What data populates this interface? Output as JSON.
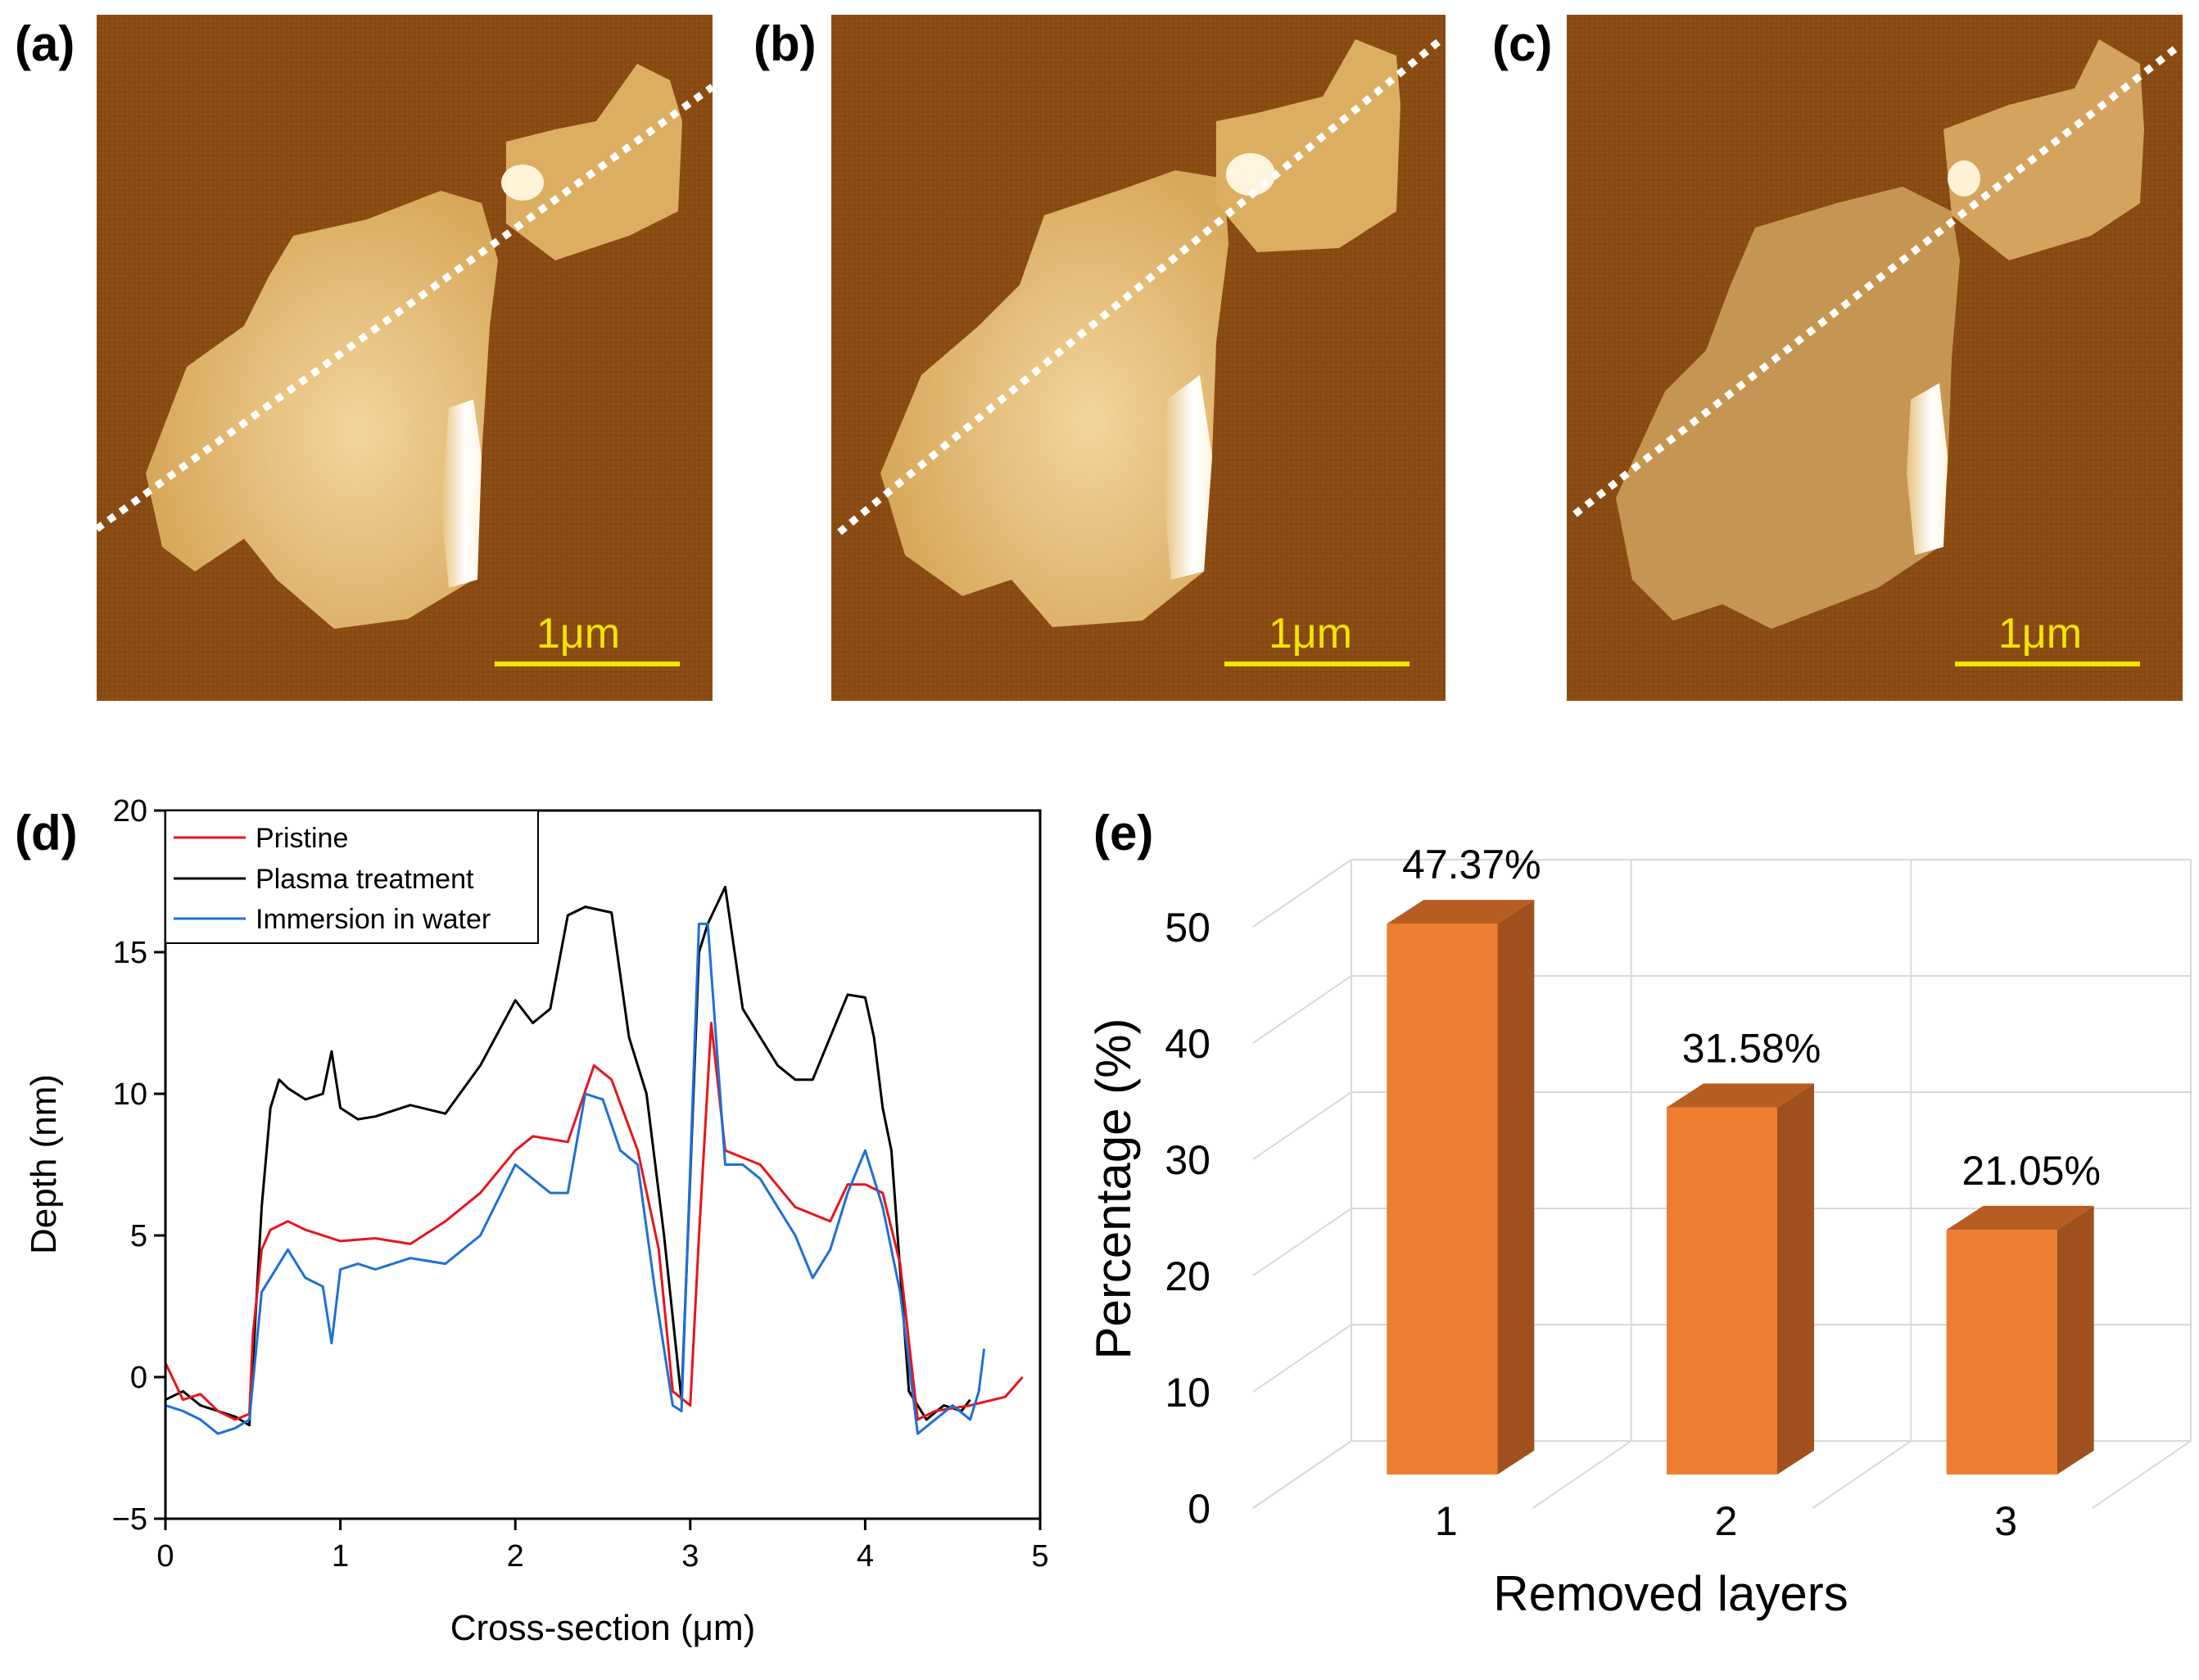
{
  "panels": {
    "a": {
      "label": "(a)",
      "scale_bar": "1μm",
      "description": "AFM topography, pristine"
    },
    "b": {
      "label": "(b)",
      "scale_bar": "1μm",
      "description": "AFM topography, plasma treatment"
    },
    "c": {
      "label": "(c)",
      "scale_bar": "1μm",
      "description": "AFM topography, immersion in water"
    }
  },
  "colors": {
    "afm_background": "#8b4c10",
    "afm_flake": "#e1b56a",
    "afm_highlight": "#fff4dc",
    "scale_bar": "#f2e600",
    "pristine": "#e8141b",
    "plasma": "#000000",
    "water": "#1f6fd6",
    "bar_front": "#ed7d31",
    "bar_side": "#a0501c",
    "bar_top": "#b65d22"
  },
  "chart_data": [
    {
      "panel": "(d)",
      "type": "line",
      "xlabel": "Cross-section (μm)",
      "ylabel": "Depth (nm)",
      "xlim": [
        0,
        5
      ],
      "ylim": [
        -5,
        20
      ],
      "xticks": [
        0,
        1,
        2,
        3,
        4,
        5
      ],
      "yticks": [
        -5,
        0,
        5,
        10,
        15,
        20
      ],
      "legend": "top-left",
      "series": [
        {
          "name": "Pristine",
          "color": "#e8141b",
          "x": [
            0,
            0.1,
            0.2,
            0.3,
            0.4,
            0.48,
            0.5,
            0.55,
            0.6,
            0.7,
            0.8,
            1.0,
            1.2,
            1.4,
            1.6,
            1.8,
            2.0,
            2.1,
            2.3,
            2.45,
            2.55,
            2.7,
            2.82,
            2.9,
            3.0,
            3.05,
            3.12,
            3.2,
            3.4,
            3.6,
            3.8,
            3.9,
            4.0,
            4.1,
            4.2,
            4.3,
            4.4,
            4.6,
            4.8,
            4.9
          ],
          "y": [
            0.5,
            -0.8,
            -0.6,
            -1.2,
            -1.5,
            -1.3,
            1.5,
            4.5,
            5.2,
            5.5,
            5.2,
            4.8,
            4.9,
            4.7,
            5.5,
            6.5,
            8.0,
            8.5,
            8.3,
            11.0,
            10.5,
            8.0,
            4.5,
            -0.5,
            -1.0,
            5.0,
            12.5,
            8.0,
            7.5,
            6.0,
            5.5,
            6.8,
            6.8,
            6.5,
            4.0,
            -1.5,
            -1.2,
            -1.0,
            -0.7,
            0.0
          ]
        },
        {
          "name": "Plasma treatment",
          "color": "#000000",
          "x": [
            0,
            0.1,
            0.2,
            0.3,
            0.4,
            0.48,
            0.55,
            0.6,
            0.65,
            0.7,
            0.8,
            0.9,
            0.95,
            1.0,
            1.1,
            1.2,
            1.4,
            1.6,
            1.8,
            2.0,
            2.1,
            2.2,
            2.3,
            2.4,
            2.55,
            2.65,
            2.75,
            2.85,
            2.95,
            3.05,
            3.1,
            3.2,
            3.3,
            3.4,
            3.5,
            3.6,
            3.7,
            3.8,
            3.9,
            4.0,
            4.05,
            4.1,
            4.15,
            4.25,
            4.35,
            4.45,
            4.55,
            4.6
          ],
          "y": [
            -0.8,
            -0.5,
            -1.0,
            -1.2,
            -1.4,
            -1.7,
            6.0,
            9.5,
            10.5,
            10.2,
            9.8,
            10.0,
            11.5,
            9.5,
            9.1,
            9.2,
            9.6,
            9.3,
            11.0,
            13.3,
            12.5,
            13.0,
            16.3,
            16.6,
            16.4,
            12.0,
            10.0,
            5.0,
            -0.8,
            15.0,
            16.0,
            17.3,
            13.0,
            12.0,
            11.0,
            10.5,
            10.5,
            12.0,
            13.5,
            13.4,
            12.0,
            9.5,
            8.0,
            -0.5,
            -1.5,
            -1.0,
            -1.2,
            -0.8
          ]
        },
        {
          "name": "Immersion in water",
          "color": "#1f6fd6",
          "x": [
            0,
            0.1,
            0.2,
            0.3,
            0.4,
            0.48,
            0.55,
            0.6,
            0.7,
            0.8,
            0.9,
            0.95,
            1.0,
            1.1,
            1.2,
            1.4,
            1.6,
            1.8,
            2.0,
            2.1,
            2.2,
            2.3,
            2.4,
            2.5,
            2.6,
            2.7,
            2.8,
            2.9,
            2.95,
            3.05,
            3.1,
            3.2,
            3.3,
            3.4,
            3.5,
            3.6,
            3.7,
            3.8,
            3.9,
            4.0,
            4.1,
            4.2,
            4.3,
            4.4,
            4.5,
            4.6,
            4.65,
            4.68
          ],
          "y": [
            -1.0,
            -1.2,
            -1.5,
            -2.0,
            -1.8,
            -1.5,
            3.0,
            3.5,
            4.5,
            3.5,
            3.2,
            1.2,
            3.8,
            4.0,
            3.8,
            4.2,
            4.0,
            5.0,
            7.5,
            7.0,
            6.5,
            6.5,
            10.0,
            9.8,
            8.0,
            7.5,
            3.0,
            -1.0,
            -1.2,
            16.0,
            16.0,
            7.5,
            7.5,
            7.0,
            6.0,
            5.0,
            3.5,
            4.5,
            6.5,
            8.0,
            6.0,
            3.0,
            -2.0,
            -1.5,
            -1.0,
            -1.5,
            -0.5,
            1.0
          ]
        }
      ]
    },
    {
      "panel": "(e)",
      "type": "bar",
      "xlabel": "Removed layers",
      "ylabel": "Percentage (%)",
      "ylim": [
        0,
        50
      ],
      "yticks": [
        0,
        10,
        20,
        30,
        40,
        50
      ],
      "categories": [
        "1",
        "2",
        "3"
      ],
      "values": [
        47.37,
        31.58,
        21.05
      ],
      "data_labels": [
        "47.37%",
        "31.58%",
        "21.05%"
      ]
    }
  ]
}
